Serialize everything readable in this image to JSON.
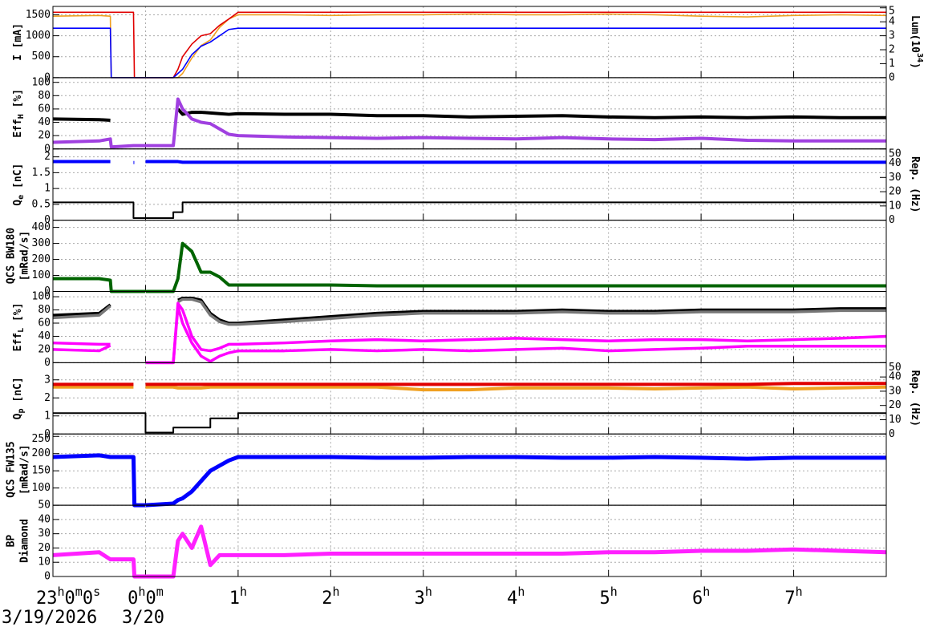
{
  "chart_data": {
    "type": "line",
    "x": [
      -1,
      -0.5,
      -0.38,
      -0.37,
      -0.13,
      -0.12,
      0.0,
      0.3,
      0.35,
      0.4,
      0.5,
      0.6,
      0.7,
      0.8,
      0.9,
      1.0,
      1.5,
      2,
      2.5,
      3,
      3.5,
      4,
      4.5,
      5,
      5.5,
      6,
      6.5,
      7,
      7.5,
      8
    ],
    "xlim": [
      -1,
      8
    ],
    "xticks": [
      {
        "value": -1,
        "label": "23h0m0s"
      },
      {
        "value": 0,
        "label": "0h0m"
      },
      {
        "value": 1,
        "label": "1h"
      },
      {
        "value": 2,
        "label": "2h"
      },
      {
        "value": 3,
        "label": "3h"
      },
      {
        "value": 4,
        "label": "4h"
      },
      {
        "value": 5,
        "label": "5h"
      },
      {
        "value": 6,
        "label": "6h"
      },
      {
        "value": 7,
        "label": "7h"
      }
    ],
    "date_labels": [
      "3/19/2026",
      "3/20"
    ],
    "grid": true,
    "panels": [
      {
        "ylabel": [
          [
            "I [mA]"
          ]
        ],
        "ylim": [
          0,
          1700
        ],
        "yticks": [
          0,
          500,
          1000,
          1500
        ],
        "y2label": [
          [
            "Lum(10",
            {
              "sup": "34"
            },
            ")"
          ]
        ],
        "y2lim": [
          0,
          5.1
        ],
        "y2ticks": [
          0,
          1,
          2,
          3,
          4,
          5
        ],
        "series": [
          {
            "color": "#f0a020",
            "axis": "y2",
            "values": [
              4.4,
              4.45,
              4.4,
              0,
              0,
              0,
              0,
              0,
              0,
              0.3,
              1.4,
              2.3,
              2.7,
              3.6,
              4.2,
              4.5,
              4.5,
              4.45,
              4.5,
              4.5,
              4.55,
              4.5,
              4.5,
              4.55,
              4.5,
              4.4,
              4.35,
              4.45,
              4.5,
              4.45
            ]
          },
          {
            "color": "#e00000",
            "values": [
              1560,
              1560,
              1560,
              1560,
              1560,
              0,
              0,
              0,
              200,
              500,
              800,
              1000,
              1050,
              1250,
              1400,
              1560,
              1560,
              1560,
              1560,
              1560,
              1560,
              1560,
              1560,
              1560,
              1560,
              1560,
              1560,
              1560,
              1560,
              1560
            ]
          },
          {
            "color": "#0000ff",
            "values": [
              1180,
              1180,
              1180,
              0,
              0,
              0,
              0,
              0,
              100,
              200,
              550,
              750,
              850,
              1000,
              1150,
              1180,
              1180,
              1180,
              1180,
              1180,
              1180,
              1180,
              1180,
              1180,
              1180,
              1180,
              1180,
              1180,
              1180,
              1180
            ]
          }
        ]
      },
      {
        "ylabel": [
          [
            "Eff",
            {
              "sub": "H"
            },
            " [%]"
          ]
        ],
        "ylim": [
          0,
          107
        ],
        "yticks": [
          0,
          20,
          40,
          60,
          80,
          100
        ],
        "series": [
          {
            "color": "#000000",
            "values": [
              45,
              44,
              43,
              null,
              null,
              null,
              null,
              null,
              60,
              52,
              55,
              55,
              54,
              53,
              52,
              53,
              52,
              52,
              50,
              50,
              48,
              49,
              50,
              48,
              47,
              48,
              47,
              48,
              47,
              47
            ]
          },
          {
            "color": "#a040e0",
            "values": [
              10,
              12,
              15,
              3,
              5,
              5,
              5,
              5,
              75,
              60,
              45,
              40,
              38,
              30,
              22,
              20,
              18,
              17,
              16,
              17,
              16,
              15,
              17,
              15,
              14,
              16,
              13,
              12,
              12,
              12
            ]
          }
        ]
      },
      {
        "ylabel": [
          [
            "Q",
            {
              "sub": "e"
            },
            " [nC]"
          ]
        ],
        "ylim": [
          0,
          2.25
        ],
        "yticks": [
          0,
          0.5,
          1,
          1.5,
          2
        ],
        "y2label": [
          [
            "Rep. (Hz)"
          ]
        ],
        "y2lim": [
          0,
          50
        ],
        "y2ticks": [
          0,
          10,
          20,
          30,
          40,
          50
        ],
        "series": [
          {
            "color": "#0000ff",
            "values": [
              1.85,
              1.85,
              1.85,
              null,
              1.82,
              null,
              1.85,
              1.85,
              1.85,
              1.83,
              1.83,
              1.83,
              1.83,
              1.83,
              1.83,
              1.83,
              1.83,
              1.83,
              1.83,
              1.83,
              1.83,
              1.83,
              1.83,
              1.83,
              1.83,
              1.83,
              1.83,
              1.83,
              1.83,
              1.83
            ]
          },
          {
            "color": "#000000",
            "axis": "y2",
            "step": true,
            "values": [
              12.5,
              12.5,
              12.5,
              12.5,
              1.5,
              1.5,
              1.5,
              5.6,
              5.6,
              12.5,
              12.5,
              12.5,
              12.5,
              12.5,
              12.5,
              12.5,
              12.5,
              12.5,
              12.5,
              12.5,
              12.5,
              12.5,
              12.5,
              12.5,
              12.5,
              12.5,
              12.5,
              12.5,
              12.5,
              12.5
            ]
          }
        ]
      },
      {
        "ylabel": [
          [
            "QCS BW180"
          ],
          [
            "[mRad/s]"
          ]
        ],
        "ylim": [
          0,
          445
        ],
        "yticks": [
          0,
          100,
          200,
          300,
          400
        ],
        "series": [
          {
            "color": "#006400",
            "values": [
              80,
              80,
              70,
              0,
              0,
              0,
              0,
              0,
              80,
              300,
              250,
              120,
              120,
              90,
              40,
              40,
              40,
              40,
              35,
              35,
              35,
              35,
              35,
              35,
              35,
              35,
              35,
              35,
              35,
              35
            ]
          }
        ]
      },
      {
        "ylabel": [
          [
            "Eff",
            {
              "sub": "L"
            },
            " [%]"
          ]
        ],
        "ylim": [
          0,
          108
        ],
        "yticks": [
          0,
          20,
          40,
          60,
          80,
          100
        ],
        "series": [
          {
            "color": "#000000",
            "values": [
              72,
              75,
              88,
              null,
              null,
              null,
              null,
              null,
              95,
              98,
              98,
              95,
              75,
              65,
              60,
              60,
              65,
              70,
              75,
              78,
              78,
              78,
              80,
              78,
              78,
              80,
              80,
              80,
              82,
              82
            ]
          },
          {
            "color": "#777777",
            "values": [
              68,
              72,
              86,
              null,
              null,
              null,
              null,
              null,
              92,
              96,
              96,
              92,
              72,
              62,
              58,
              58,
              62,
              67,
              72,
              75,
              75,
              75,
              77,
              75,
              75,
              77,
              77,
              77,
              79,
              79
            ]
          },
          {
            "color": "#ff00ff",
            "values": [
              30,
              28,
              28,
              null,
              null,
              null,
              0,
              0,
              90,
              80,
              40,
              20,
              18,
              22,
              28,
              28,
              30,
              33,
              35,
              33,
              35,
              37,
              35,
              33,
              35,
              35,
              33,
              35,
              37,
              40
            ]
          },
          {
            "color": "#ff00ff",
            "values": [
              20,
              18,
              26,
              null,
              null,
              null,
              0,
              0,
              85,
              60,
              30,
              10,
              2,
              10,
              15,
              18,
              18,
              20,
              18,
              20,
              18,
              20,
              22,
              18,
              20,
              22,
              25,
              25,
              25,
              25
            ]
          }
        ]
      },
      {
        "ylabel": [
          [
            "Q",
            {
              "sub": "p"
            },
            " [nC]"
          ]
        ],
        "ylim": [
          0,
          3.95
        ],
        "yticks": [
          0,
          1,
          2,
          3
        ],
        "y2label": [
          [
            "Rep. (Hz)"
          ]
        ],
        "y2lim": [
          0,
          50
        ],
        "y2ticks": [
          0,
          10,
          20,
          30,
          40,
          50
        ],
        "series": [
          {
            "color": "#f0a020",
            "values": [
              2.6,
              2.6,
              2.6,
              2.6,
              2.6,
              null,
              2.6,
              2.6,
              2.55,
              2.55,
              2.55,
              2.55,
              2.6,
              2.6,
              2.6,
              2.6,
              2.6,
              2.6,
              2.6,
              2.45,
              2.45,
              2.55,
              2.55,
              2.55,
              2.5,
              2.55,
              2.6,
              2.5,
              2.55,
              2.6
            ]
          },
          {
            "color": "#e00000",
            "values": [
              2.75,
              2.75,
              2.75,
              2.75,
              2.75,
              null,
              2.75,
              2.75,
              2.75,
              2.75,
              2.75,
              2.75,
              2.75,
              2.75,
              2.75,
              2.75,
              2.75,
              2.75,
              2.75,
              2.75,
              2.75,
              2.75,
              2.75,
              2.75,
              2.75,
              2.75,
              2.75,
              2.8,
              2.8,
              2.8
            ]
          },
          {
            "color": "#000000",
            "axis": "y2",
            "step": true,
            "values": [
              14.6,
              14.6,
              14.6,
              14.6,
              14.6,
              14.6,
              1,
              4.5,
              4.5,
              4.5,
              4.5,
              4.5,
              11,
              11,
              11,
              14.6,
              14.6,
              14.6,
              14.6,
              14.6,
              14.6,
              14.6,
              14.6,
              14.6,
              14.6,
              14.6,
              14.6,
              14.6,
              14.6,
              14.6
            ]
          }
        ]
      },
      {
        "ylabel": [
          [
            "QCS FW135"
          ],
          [
            "[mRad/s]"
          ]
        ],
        "ylim": [
          50,
          257
        ],
        "yticks": [
          50,
          100,
          150,
          200,
          250
        ],
        "series": [
          {
            "color": "#0000ff",
            "values": [
              190,
              195,
              190,
              190,
              190,
              50,
              50,
              55,
              65,
              70,
              90,
              120,
              150,
              165,
              180,
              190,
              190,
              190,
              188,
              188,
              190,
              190,
              188,
              188,
              190,
              188,
              185,
              188,
              188,
              188
            ]
          }
        ]
      },
      {
        "ylabel": [
          [
            "BP"
          ],
          [
            "Diamond"
          ]
        ],
        "ylim": [
          0,
          50
        ],
        "yticks": [
          0,
          10,
          20,
          30,
          40
        ],
        "series": [
          {
            "color": "#ff20ff",
            "values": [
              15,
              17,
              12,
              12,
              12,
              0,
              0,
              0,
              25,
              30,
              20,
              35,
              8,
              15,
              15,
              15,
              15,
              16,
              16,
              16,
              16,
              16,
              16,
              17,
              17,
              18,
              18,
              19,
              18,
              17
            ]
          }
        ]
      }
    ]
  }
}
